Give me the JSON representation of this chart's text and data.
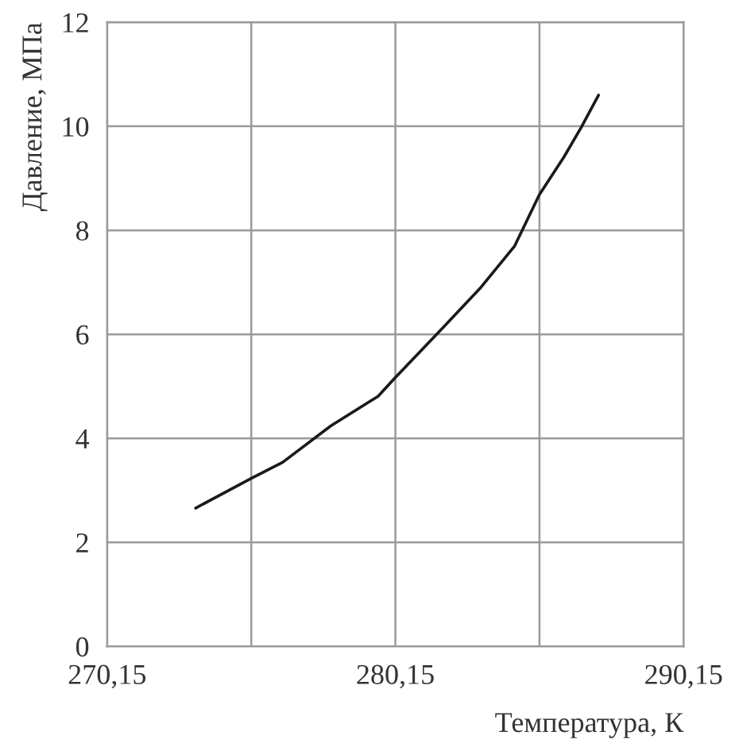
{
  "chart_data": {
    "type": "line",
    "xlabel": "Температура, К",
    "ylabel": "Давление, МПа",
    "x": [
      273.22,
      275.15,
      276.24,
      277.91,
      279.55,
      280.15,
      281.75,
      283.08,
      284.29,
      285.15,
      286.0,
      286.6,
      287.2
    ],
    "series": [
      {
        "color": "#1a1a1a",
        "values": [
          2.66,
          3.23,
          3.54,
          4.24,
          4.81,
          5.17,
          6.1,
          6.88,
          7.7,
          8.69,
          9.41,
          9.98,
          10.6
        ]
      }
    ],
    "xlim": [
      270.15,
      290.15
    ],
    "xticks": [
      {
        "value": 270.15,
        "label": "270,15"
      },
      {
        "value": 275.15,
        "label": null
      },
      {
        "value": 280.15,
        "label": "280,15"
      },
      {
        "value": 285.15,
        "label": null
      },
      {
        "value": 290.15,
        "label": "290,15"
      }
    ],
    "ylim": [
      0,
      12
    ],
    "yticks": [
      0,
      2,
      4,
      6,
      8,
      10,
      12
    ],
    "grid": true,
    "marker": "none",
    "line_style": "solid"
  }
}
